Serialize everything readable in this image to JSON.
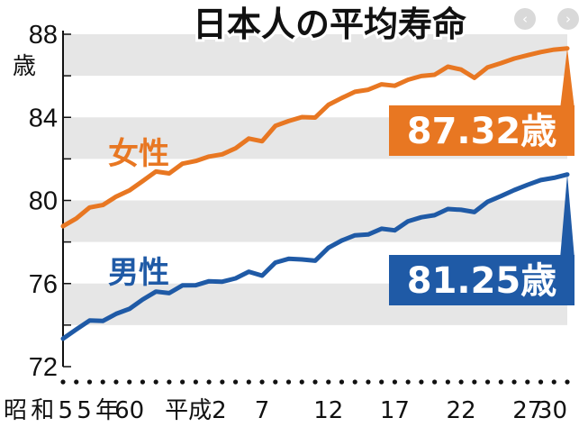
{
  "nav": {
    "prev_icon": "chevron-left-icon",
    "next_icon": "chevron-right-icon",
    "prev_glyph": "‹",
    "next_glyph": "›"
  },
  "chart_data": {
    "type": "line",
    "title": "日本人の平均寿命",
    "ylabel": "歳",
    "ylim": [
      72,
      88
    ],
    "yticks": [
      72,
      76,
      80,
      84,
      88
    ],
    "grid": true,
    "xlim": [
      0,
      38
    ],
    "xticks": [
      {
        "x": 0,
        "label": "昭和55年"
      },
      {
        "x": 5,
        "label": "60"
      },
      {
        "x": 10,
        "label": "平成2"
      },
      {
        "x": 15,
        "label": "7"
      },
      {
        "x": 20,
        "label": "12"
      },
      {
        "x": 25,
        "label": "17"
      },
      {
        "x": 30,
        "label": "22"
      },
      {
        "x": 35,
        "label": "27"
      },
      {
        "x": 38,
        "label": "30"
      }
    ],
    "series": [
      {
        "name": "女性",
        "color": "#e87722",
        "end_label": "87.32歳",
        "x": [
          0,
          1,
          2,
          3,
          4,
          5,
          6,
          7,
          8,
          9,
          10,
          11,
          12,
          13,
          14,
          15,
          16,
          17,
          18,
          19,
          20,
          21,
          22,
          23,
          24,
          25,
          26,
          27,
          28,
          29,
          30,
          31,
          32,
          33,
          34,
          35,
          36,
          37,
          38
        ],
        "values": [
          78.76,
          79.13,
          79.66,
          79.78,
          80.18,
          80.48,
          80.93,
          81.39,
          81.3,
          81.77,
          81.9,
          82.11,
          82.22,
          82.51,
          82.98,
          82.85,
          83.59,
          83.82,
          84.01,
          83.99,
          84.6,
          84.93,
          85.23,
          85.33,
          85.59,
          85.52,
          85.81,
          85.99,
          86.05,
          86.44,
          86.3,
          85.9,
          86.41,
          86.61,
          86.83,
          86.99,
          87.14,
          87.26,
          87.32
        ]
      },
      {
        "name": "男性",
        "color": "#1f5aa6",
        "end_label": "81.25歳",
        "x": [
          0,
          1,
          2,
          3,
          4,
          5,
          6,
          7,
          8,
          9,
          10,
          11,
          12,
          13,
          14,
          15,
          16,
          17,
          18,
          19,
          20,
          21,
          22,
          23,
          24,
          25,
          26,
          27,
          28,
          29,
          30,
          31,
          32,
          33,
          34,
          35,
          36,
          37,
          38
        ],
        "values": [
          73.35,
          73.79,
          74.22,
          74.2,
          74.54,
          74.78,
          75.23,
          75.61,
          75.54,
          75.91,
          75.92,
          76.11,
          76.09,
          76.25,
          76.57,
          76.38,
          77.01,
          77.19,
          77.16,
          77.1,
          77.72,
          78.07,
          78.32,
          78.36,
          78.64,
          78.56,
          79.0,
          79.19,
          79.29,
          79.59,
          79.55,
          79.44,
          79.94,
          80.21,
          80.5,
          80.75,
          80.98,
          81.09,
          81.25
        ]
      }
    ]
  }
}
